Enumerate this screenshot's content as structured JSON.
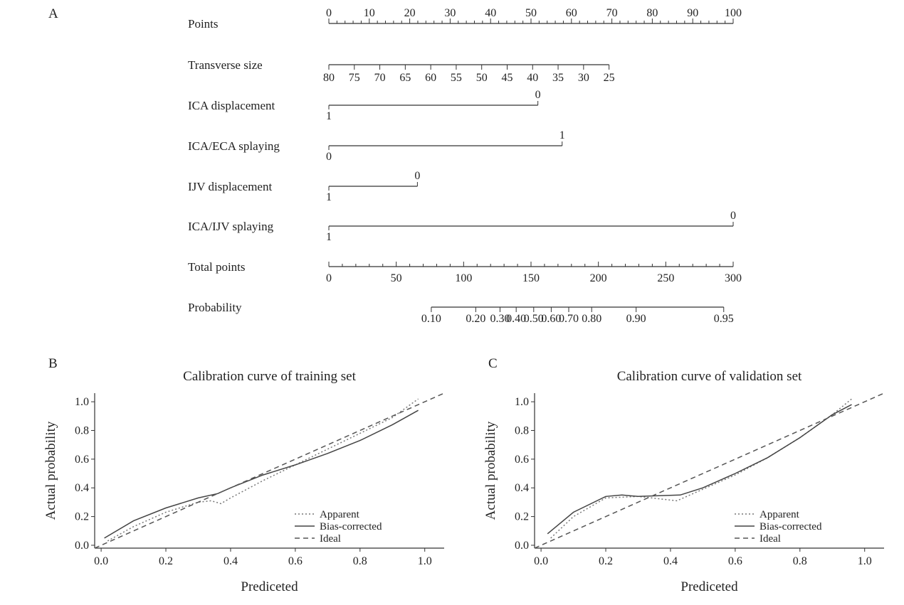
{
  "panels": {
    "a": "A",
    "b": "B",
    "c": "C"
  },
  "chart_data": [
    {
      "type": "nomogram",
      "rows": [
        {
          "label": "Points",
          "kind": "scale",
          "ticks": [
            {
              "text": "0",
              "points": 0
            },
            {
              "text": "10",
              "points": 10
            },
            {
              "text": "20",
              "points": 20
            },
            {
              "text": "30",
              "points": 30
            },
            {
              "text": "40",
              "points": 40
            },
            {
              "text": "50",
              "points": 50
            },
            {
              "text": "60",
              "points": 60
            },
            {
              "text": "70",
              "points": 70
            },
            {
              "text": "80",
              "points": 80
            },
            {
              "text": "90",
              "points": 90
            },
            {
              "text": "100",
              "points": 100
            }
          ]
        },
        {
          "label": "Transverse size",
          "kind": "scale",
          "ticks": [
            {
              "text": "80",
              "points": 0
            },
            {
              "text": "75",
              "points": 6.3
            },
            {
              "text": "70",
              "points": 12.6
            },
            {
              "text": "65",
              "points": 18.9
            },
            {
              "text": "60",
              "points": 25.2
            },
            {
              "text": "55",
              "points": 31.5
            },
            {
              "text": "50",
              "points": 37.8
            },
            {
              "text": "45",
              "points": 44.1
            },
            {
              "text": "40",
              "points": 50.4
            },
            {
              "text": "35",
              "points": 56.7
            },
            {
              "text": "30",
              "points": 63
            },
            {
              "text": "25",
              "points": 69.3
            }
          ]
        },
        {
          "label": "ICA displacement",
          "kind": "binary",
          "low": "1",
          "high": "0",
          "points": 51.7
        },
        {
          "label": "ICA/ECA splaying",
          "kind": "binary",
          "low": "0",
          "high": "1",
          "points": 57.7
        },
        {
          "label": "IJV displacement",
          "kind": "binary",
          "low": "1",
          "high": "0",
          "points": 21.9
        },
        {
          "label": "ICA/IJV splaying",
          "kind": "binary",
          "low": "1",
          "high": "0",
          "points": 100
        },
        {
          "label": "Total points",
          "kind": "scale",
          "ticks": [
            {
              "text": "0",
              "points": 0
            },
            {
              "text": "50",
              "points": 50
            },
            {
              "text": "100",
              "points": 100
            },
            {
              "text": "150",
              "points": 150
            },
            {
              "text": "200",
              "points": 200
            },
            {
              "text": "250",
              "points": 250
            },
            {
              "text": "300",
              "points": 300
            }
          ],
          "max": 300
        },
        {
          "label": "Probability",
          "kind": "scale",
          "start_points": 76,
          "end_points": 293,
          "ticks": [
            {
              "text": "0.10",
              "points": 76
            },
            {
              "text": "0.20",
              "points": 109
            },
            {
              "text": "0.30",
              "points": 127
            },
            {
              "text": "0.40",
              "points": 139
            },
            {
              "text": "0.50",
              "points": 152
            },
            {
              "text": "0.60",
              "points": 165
            },
            {
              "text": "0.70",
              "points": 178
            },
            {
              "text": "0.80",
              "points": 195
            },
            {
              "text": "0.90",
              "points": 228
            },
            {
              "text": "0.95",
              "points": 293
            }
          ]
        }
      ]
    },
    {
      "type": "line",
      "title": "Calibration curve of training set",
      "xlabel": "Prediceted",
      "ylabel": "Actual probability",
      "xlim": [
        -0.02,
        1.06
      ],
      "ylim": [
        -0.02,
        1.06
      ],
      "xticks": [
        "0.0",
        "0.2",
        "0.4",
        "0.6",
        "0.8",
        "1.0"
      ],
      "yticks": [
        "0.0",
        "0.2",
        "0.4",
        "0.6",
        "0.8",
        "1.0"
      ],
      "legend": "bottom-right",
      "series": [
        {
          "name": "Apparent",
          "style": "dotted",
          "color": "#777777",
          "x": [
            0.02,
            0.1,
            0.2,
            0.3,
            0.34,
            0.37,
            0.4,
            0.5,
            0.6,
            0.7,
            0.8,
            0.9,
            0.98
          ],
          "y": [
            0.03,
            0.13,
            0.23,
            0.3,
            0.31,
            0.29,
            0.33,
            0.45,
            0.56,
            0.67,
            0.78,
            0.89,
            1.02
          ]
        },
        {
          "name": "Bias-corrected",
          "style": "solid",
          "color": "#444444",
          "x": [
            0.01,
            0.1,
            0.2,
            0.3,
            0.36,
            0.4,
            0.5,
            0.6,
            0.7,
            0.8,
            0.9,
            0.98
          ],
          "y": [
            0.05,
            0.17,
            0.26,
            0.33,
            0.36,
            0.4,
            0.49,
            0.56,
            0.64,
            0.73,
            0.84,
            0.94
          ]
        },
        {
          "name": "Ideal",
          "style": "dashed",
          "color": "#555555",
          "x": [
            -0.02,
            1.06
          ],
          "y": [
            -0.02,
            1.06
          ]
        }
      ]
    },
    {
      "type": "line",
      "title": "Calibration curve of validation set",
      "xlabel": "Prediceted",
      "ylabel": "Actual probability",
      "xlim": [
        -0.02,
        1.06
      ],
      "ylim": [
        -0.02,
        1.06
      ],
      "xticks": [
        "0.0",
        "0.2",
        "0.4",
        "0.6",
        "0.8",
        "1.0"
      ],
      "yticks": [
        "0.0",
        "0.2",
        "0.4",
        "0.6",
        "0.8",
        "1.0"
      ],
      "legend": "bottom-right",
      "series": [
        {
          "name": "Apparent",
          "style": "dotted",
          "color": "#777777",
          "x": [
            0.03,
            0.1,
            0.2,
            0.3,
            0.42,
            0.5,
            0.6,
            0.7,
            0.8,
            0.9,
            0.96
          ],
          "y": [
            0.05,
            0.2,
            0.33,
            0.34,
            0.31,
            0.39,
            0.49,
            0.61,
            0.75,
            0.91,
            1.02
          ]
        },
        {
          "name": "Bias-corrected",
          "style": "solid",
          "color": "#444444",
          "x": [
            0.02,
            0.1,
            0.2,
            0.25,
            0.3,
            0.43,
            0.5,
            0.6,
            0.7,
            0.8,
            0.9,
            0.96
          ],
          "y": [
            0.08,
            0.23,
            0.34,
            0.35,
            0.34,
            0.35,
            0.4,
            0.5,
            0.61,
            0.75,
            0.91,
            0.98
          ]
        },
        {
          "name": "Ideal",
          "style": "dashed",
          "color": "#555555",
          "x": [
            -0.02,
            1.06
          ],
          "y": [
            -0.02,
            1.06
          ]
        }
      ]
    }
  ]
}
